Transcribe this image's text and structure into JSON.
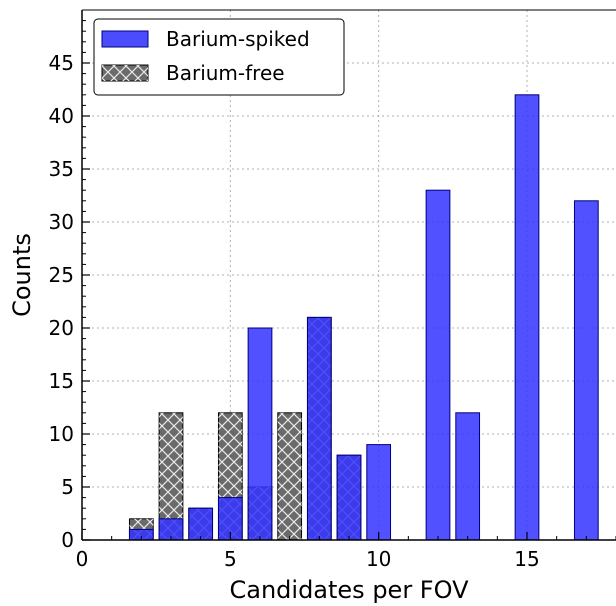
{
  "chart_data": {
    "type": "bar",
    "xlabel": "Candidates per FOV",
    "ylabel": "Counts",
    "xlim": [
      0,
      18
    ],
    "ylim": [
      0,
      50
    ],
    "xticks": [
      0,
      5,
      10,
      15
    ],
    "yticks": [
      0,
      5,
      10,
      15,
      20,
      25,
      30,
      35,
      40,
      45
    ],
    "grid": true,
    "legend_position": "top-left",
    "series": [
      {
        "name": "Barium-spiked",
        "color": "#3333ff",
        "x": [
          2,
          3,
          4,
          5,
          6,
          8,
          9,
          10,
          12,
          13,
          15,
          17
        ],
        "values": [
          1,
          2,
          3,
          4,
          20,
          21,
          8,
          9,
          33,
          12,
          42,
          32
        ]
      },
      {
        "name": "Barium-free",
        "color": "#555555",
        "hatch": "x",
        "x": [
          2,
          3,
          4,
          5,
          6,
          7,
          8,
          9
        ],
        "values": [
          2,
          12,
          3,
          12,
          5,
          12,
          21,
          8
        ]
      }
    ]
  }
}
